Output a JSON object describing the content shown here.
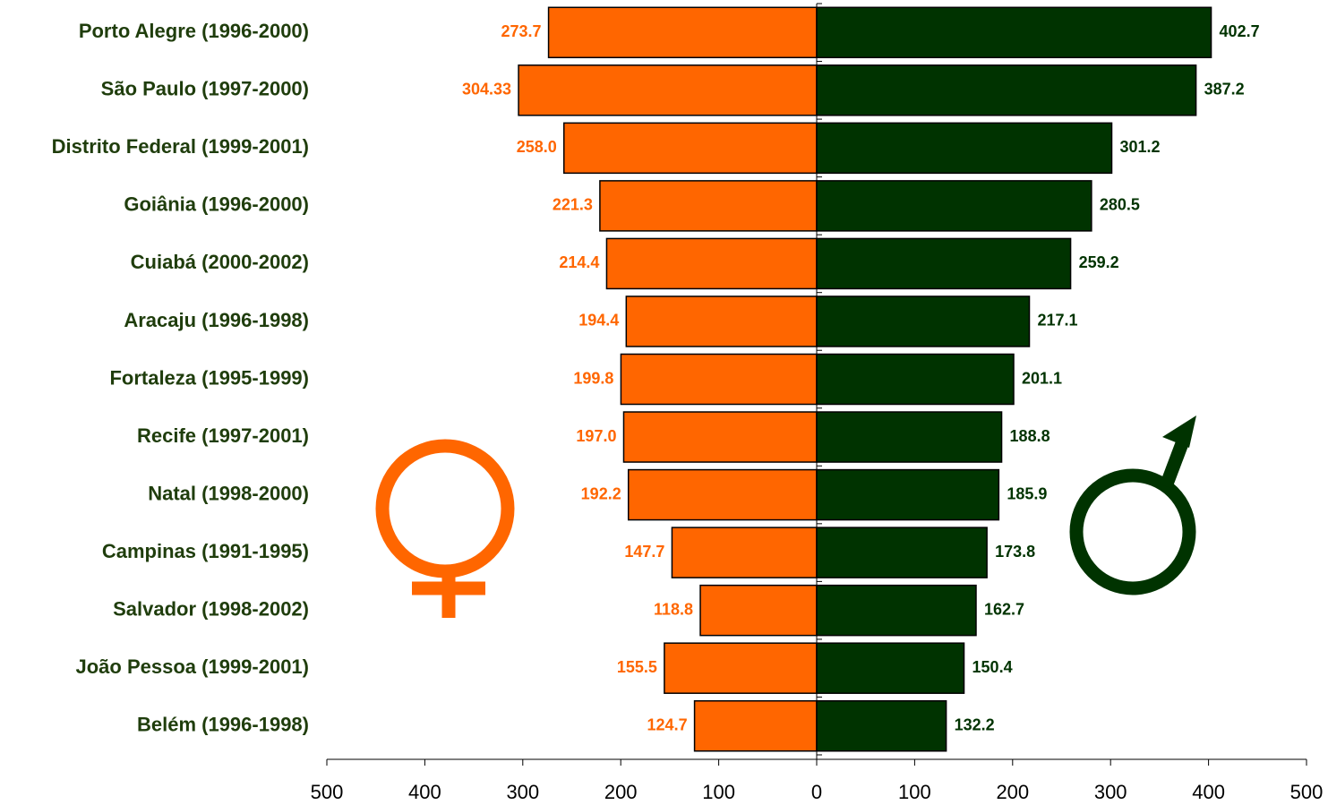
{
  "chart_data": {
    "type": "butterfly",
    "categories": [
      "Porto Alegre (1996-2000)",
      "São Paulo (1997-2000)",
      "Distrito Federal (1999-2001)",
      "Goiânia (1996-2000)",
      "Cuiabá (2000-2002)",
      "Aracaju (1996-1998)",
      "Fortaleza (1995-1999)",
      "Recife (1997-2001)",
      "Natal (1998-2000)",
      "Campinas (1991-1995)",
      "Salvador (1998-2002)",
      "João Pessoa (1999-2001)",
      "Belém (1996-1998)"
    ],
    "series": [
      {
        "color": "#ff6600",
        "side": "left",
        "values": [
          273.7,
          304.33,
          258.0,
          221.3,
          214.4,
          194.4,
          199.8,
          197.0,
          192.2,
          147.7,
          118.8,
          155.5,
          124.7
        ],
        "value_labels": [
          "273.7",
          "304.33",
          "258.0",
          "221.3",
          "214.4",
          "194.4",
          "199.8",
          "197.0",
          "192.2",
          "147.7",
          "118.8",
          "155.5",
          "124.7"
        ]
      },
      {
        "color": "#003300",
        "side": "right",
        "values": [
          402.7,
          387.2,
          301.2,
          280.5,
          259.2,
          217.1,
          201.1,
          188.8,
          185.9,
          173.8,
          162.7,
          150.4,
          132.2
        ],
        "value_labels": [
          "402.7",
          "387.2",
          "301.2",
          "280.5",
          "259.2",
          "217.1",
          "201.1",
          "188.8",
          "185.9",
          "173.8",
          "162.7",
          "150.4",
          "132.2"
        ]
      }
    ],
    "xlim": [
      -500,
      500
    ],
    "xticks": [
      {
        "value": -500,
        "label": "500"
      },
      {
        "value": -400,
        "label": "400"
      },
      {
        "value": -300,
        "label": "300"
      },
      {
        "value": -200,
        "label": "200"
      },
      {
        "value": -100,
        "label": "100"
      },
      0,
      100,
      200,
      300,
      400,
      500
    ]
  }
}
